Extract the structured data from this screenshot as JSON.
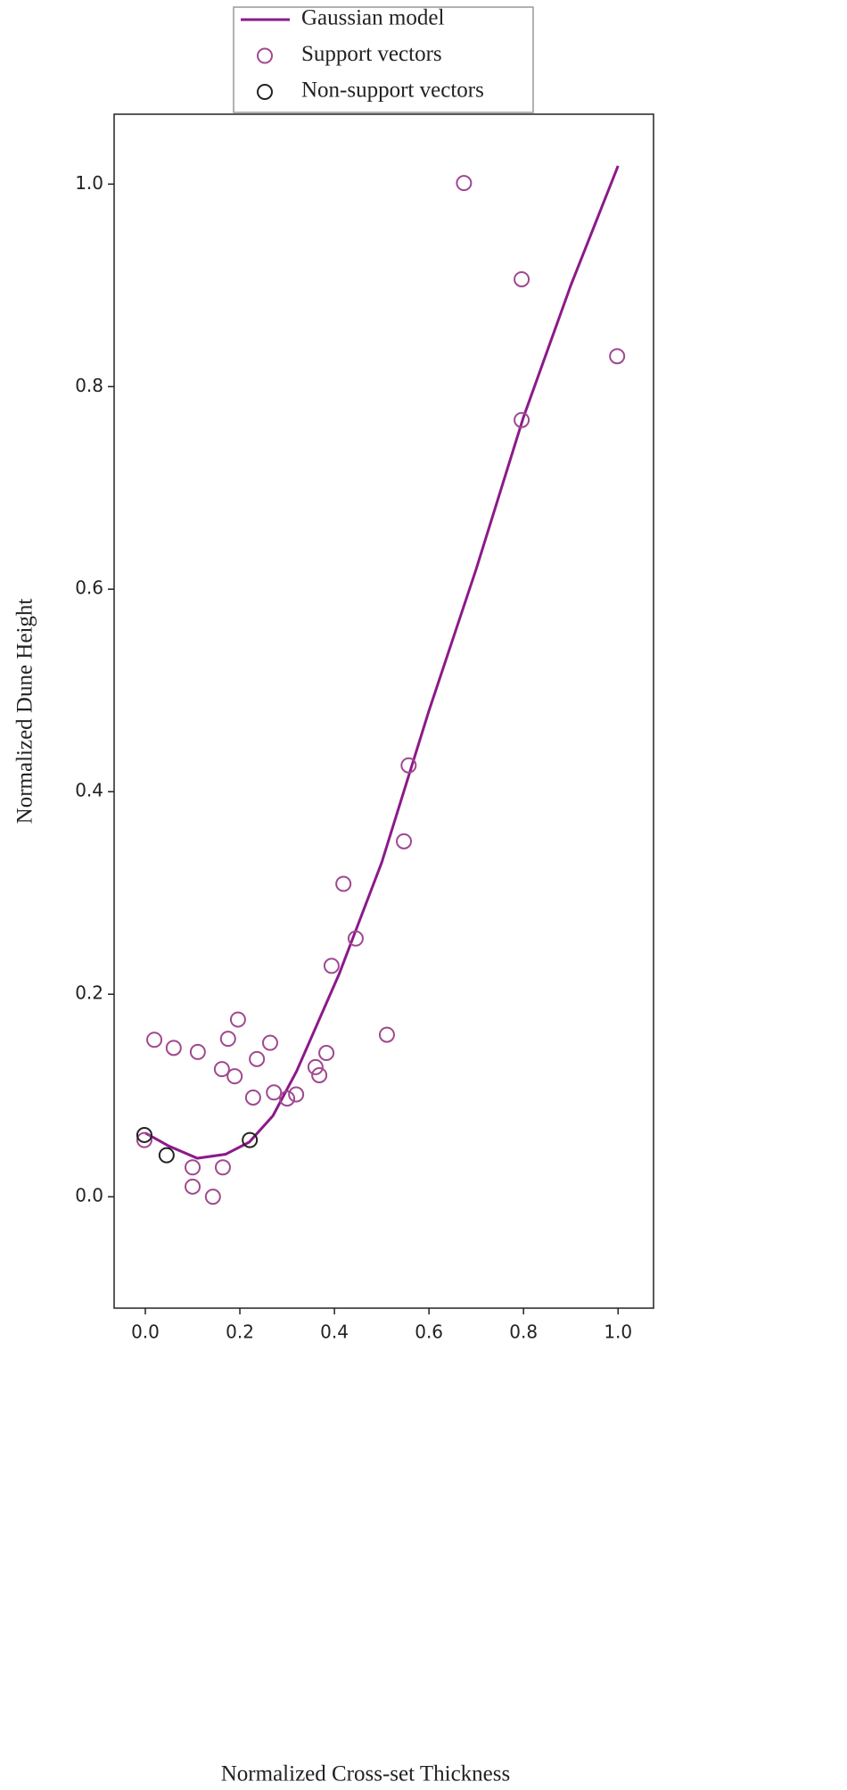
{
  "chart_data": {
    "type": "scatter",
    "xlabel": "Normalized Cross-set Thickness",
    "ylabel": "Normalized Dune Height",
    "xlim": [
      -0.066,
      1.075
    ],
    "ylim": [
      -0.11,
      1.069
    ],
    "xticks": [
      {
        "value": 0,
        "label": "0.0"
      },
      0.2,
      0.4,
      0.6,
      0.8,
      {
        "value": 1,
        "label": "1.0"
      }
    ],
    "yticks": [
      {
        "value": 0,
        "label": "0.0"
      },
      0.2,
      0.4,
      0.6,
      0.8,
      {
        "value": 1,
        "label": "1.0"
      }
    ],
    "legend": "top-center",
    "series": [
      {
        "name": "Gaussian model",
        "type": "line",
        "color": "#8b1a89",
        "x": [
          0,
          0.05,
          0.11,
          0.17,
          0.22,
          0.27,
          0.32,
          0.41,
          0.5,
          0.6,
          0.7,
          0.8,
          0.9,
          1.0
        ],
        "values": [
          0.063,
          0.05,
          0.038,
          0.042,
          0.054,
          0.08,
          0.124,
          0.22,
          0.33,
          0.48,
          0.62,
          0.77,
          0.9,
          1.018
        ]
      },
      {
        "name": "Support vectors",
        "type": "scatter",
        "color": "#a04890",
        "x": [
          0.674,
          0.796,
          0.998,
          0.796,
          0.557,
          0.547,
          0.419,
          0.445,
          0.394,
          0.511,
          0.383,
          0.019,
          0.06,
          0.111,
          0.196,
          0.175,
          0.264,
          0.162,
          0.189,
          0.236,
          0.36,
          0.368,
          0.272,
          0.319,
          0.3,
          0.228,
          -0.002,
          0.1,
          0.164,
          0.1,
          0.143
        ],
        "values": [
          1.001,
          0.906,
          0.83,
          0.767,
          0.426,
          0.351,
          0.309,
          0.255,
          0.228,
          0.16,
          0.142,
          0.155,
          0.147,
          0.143,
          0.175,
          0.156,
          0.152,
          0.126,
          0.119,
          0.136,
          0.128,
          0.12,
          0.103,
          0.101,
          0.097,
          0.098,
          0.056,
          0.029,
          0.029,
          0.01,
          0.0
        ]
      },
      {
        "name": "Non-support vectors",
        "type": "scatter",
        "color": "#222222",
        "x": [
          -0.002,
          0.045,
          0.221
        ],
        "values": [
          0.061,
          0.041,
          0.056
        ]
      }
    ]
  }
}
